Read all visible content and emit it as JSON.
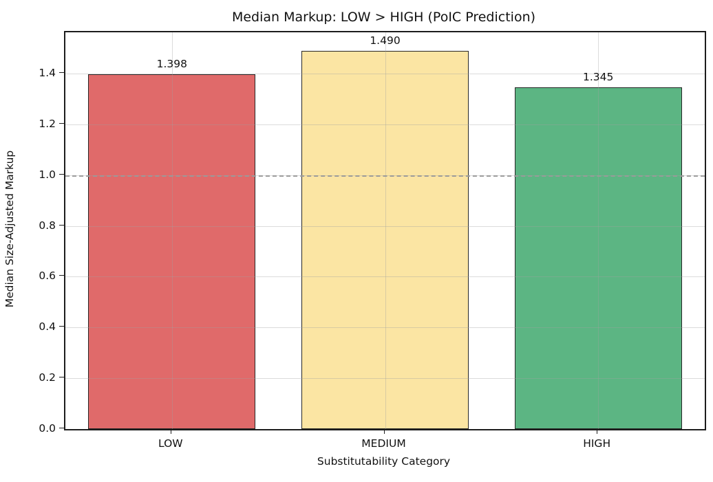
{
  "chart_data": {
    "type": "bar",
    "title": "Median Markup: LOW > HIGH (PoIC Prediction)",
    "xlabel": "Substitutability Category",
    "ylabel": "Median Size-Adjusted Markup",
    "categories": [
      "LOW",
      "MEDIUM",
      "HIGH"
    ],
    "values": [
      1.398,
      1.49,
      1.345
    ],
    "value_labels": [
      "1.398",
      "1.490",
      "1.345"
    ],
    "bar_colors": [
      "#e06a6a",
      "#fbe5a3",
      "#5cb583"
    ],
    "bar_edge_color": "#262626",
    "ylim": [
      0,
      1.5625
    ],
    "yticks": [
      0.0,
      0.2,
      0.4,
      0.6,
      0.8,
      1.0,
      1.2,
      1.4
    ],
    "ytick_labels": [
      "0.0",
      "0.2",
      "0.4",
      "0.6",
      "0.8",
      "1.0",
      "1.2",
      "1.4"
    ],
    "reference_line": {
      "y": 1.0,
      "style": "dashed",
      "color": "#9a9a9a"
    },
    "grid": true,
    "bar_width_fraction": 0.785,
    "legend": null
  }
}
